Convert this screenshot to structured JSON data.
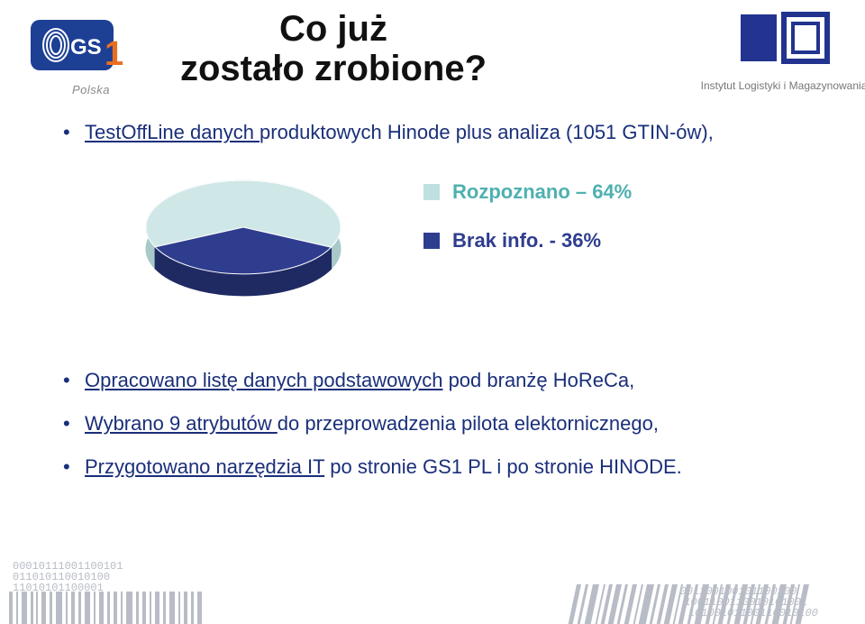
{
  "logos": {
    "gs1_sub": "Polska",
    "ilim_caption": "Instytut Logistyki i Magazynowania"
  },
  "title": {
    "line1": "Co już",
    "line2": "zostało zrobione?"
  },
  "bullets": {
    "top": {
      "prefix": "TestOffLine  danych ",
      "rest": "produktowych Hinode  plus analiza (1051 GTIN-ów),"
    },
    "lower": [
      {
        "emph": "Opracowano listę danych podstawowych",
        "rest": " pod branżę HoReCa,"
      },
      {
        "emph": "Wybrano 9 atrybutów ",
        "rest": "do przeprowadzenia pilota elektornicznego,"
      },
      {
        "emph": "Przygotowano narzędzia IT",
        "rest": " po stronie GS1 PL i po stronie HINODE."
      }
    ]
  },
  "chart": {
    "type": "pie-3d",
    "slices": [
      {
        "label": "Rozpoznano – 64%",
        "value": 64,
        "color": "#cfe7e7",
        "side_color": "#a9c9c9",
        "text_color": "#4fb0b0",
        "swatch_color": "#bfe0e0"
      },
      {
        "label": "Brak info. - 36%",
        "value": 36,
        "color": "#2f3d8f",
        "side_color": "#1f2a63",
        "text_color": "#2f3d8f",
        "swatch_color": "#2f3d8f"
      }
    ],
    "background_color": "#ffffff",
    "edge_color": "#ffffff",
    "tilt_factor": 0.48,
    "depth": 24,
    "fontsize": 22,
    "fontweight": "bold"
  },
  "footer": {
    "binary_left": "00010111001100101\n011010110010100\n11010101100001\n",
    "binary_right": "001100100101100100\n 1001100110010101001\n  10100101100110010100"
  },
  "colors": {
    "title_color": "#111111",
    "body_color": "#1a2f7a",
    "bg": "#ffffff",
    "bar_stripe": "#b8bcc6"
  }
}
